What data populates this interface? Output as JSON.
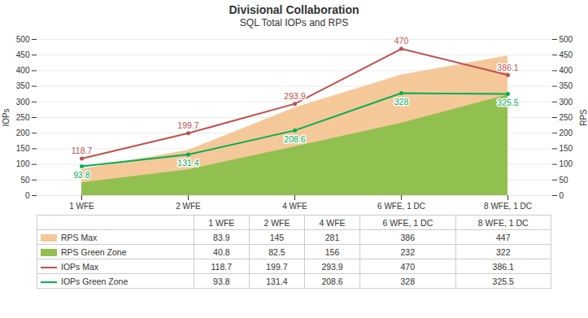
{
  "chart_data": {
    "type": "combo",
    "title": "Divisional Collaboration",
    "subtitle": "SQL Total IOPs and RPS",
    "categories": [
      "1 WFE",
      "2 WFE",
      "4 WFE",
      "6 WFE, 1 DC",
      "8 WFE, 1 DC"
    ],
    "series": [
      {
        "name": "RPS Max",
        "type": "area",
        "axis": "y2",
        "color": "#F5C89A",
        "values": [
          83.9,
          145,
          281,
          386,
          447
        ]
      },
      {
        "name": "RPS Green Zone",
        "type": "area",
        "axis": "y2",
        "color": "#92C050",
        "values": [
          40.8,
          82.5,
          156,
          232,
          322
        ]
      },
      {
        "name": "IOPs Max",
        "type": "line",
        "color": "#C0504D",
        "data_labels": true,
        "values": [
          118.7,
          199.7,
          293.9,
          470,
          386.1
        ]
      },
      {
        "name": "IOPs Green Zone",
        "type": "line",
        "color": "#00B050",
        "data_labels": true,
        "values": [
          93.8,
          131.4,
          208.6,
          328,
          325.5
        ]
      }
    ],
    "ylabel": "IOPs",
    "y2label": "RPS",
    "ylim": [
      0,
      500
    ],
    "yticks": [
      0,
      50,
      100,
      150,
      200,
      250,
      300,
      350,
      400,
      450,
      500
    ],
    "y2lim": [
      0,
      500
    ],
    "y2ticks": [
      0,
      50,
      100,
      150,
      200,
      250,
      300,
      350,
      400,
      450,
      500
    ],
    "grid": true,
    "legend": "bottom"
  }
}
